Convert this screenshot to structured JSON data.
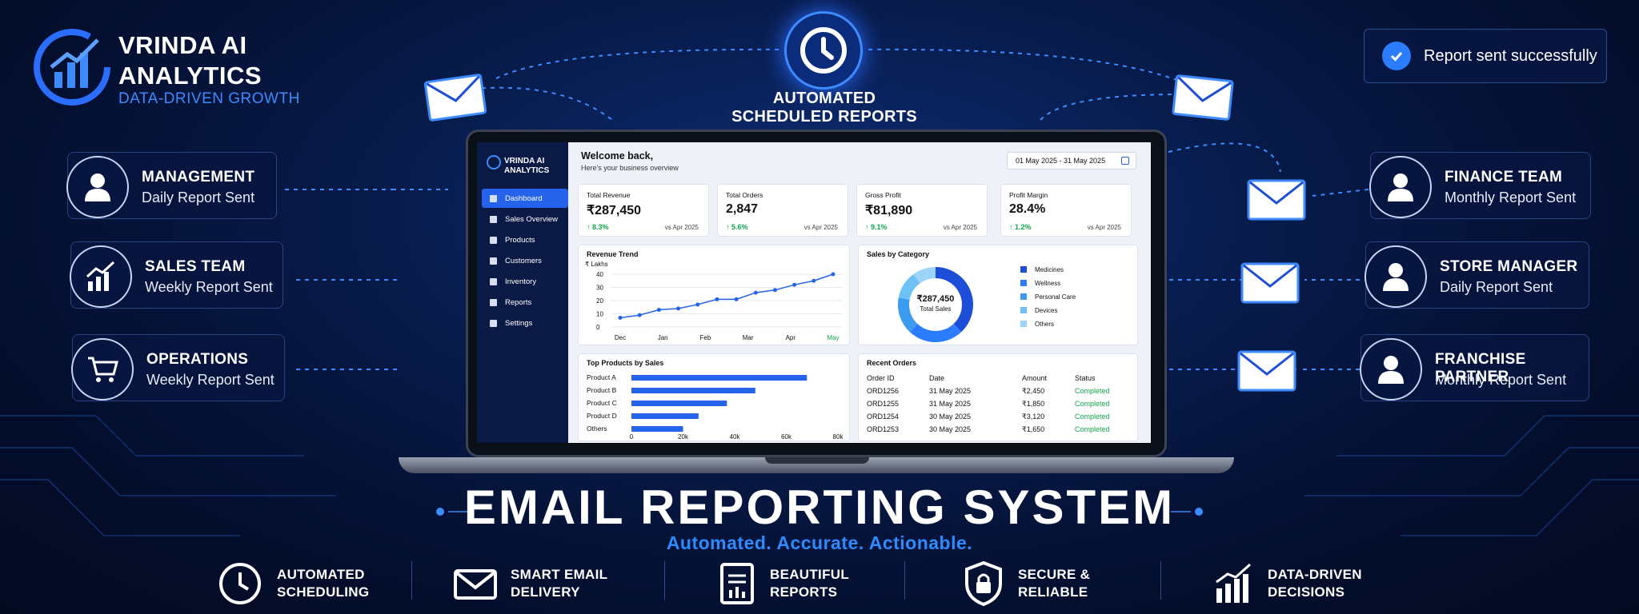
{
  "brand": {
    "line1": "VRINDA AI",
    "line2": "ANALYTICS",
    "tagline": "DATA-DRIVEN GROWTH"
  },
  "scheduler": {
    "line1": "AUTOMATED",
    "line2": "SCHEDULED REPORTS",
    "icon": "clock-icon"
  },
  "notification": {
    "text": "Report sent successfully",
    "icon": "check-circle-icon"
  },
  "recipients_left": [
    {
      "name": "MANAGEMENT",
      "status": "Daily Report Sent",
      "icon": "user-icon"
    },
    {
      "name": "SALES TEAM",
      "status": "Weekly Report Sent",
      "icon": "growth-chart-icon"
    },
    {
      "name": "OPERATIONS",
      "status": "Weekly Report Sent",
      "icon": "cart-icon"
    }
  ],
  "recipients_right": [
    {
      "name": "FINANCE TEAM",
      "status": "Monthly Report Sent",
      "icon": "user-icon"
    },
    {
      "name": "STORE MANAGER",
      "status": "Daily Report Sent",
      "icon": "user-icon"
    },
    {
      "name": "FRANCHISE PARTNER",
      "status": "Monthly Report Sent",
      "icon": "user-icon"
    }
  ],
  "dashboard": {
    "brand_line1": "VRINDA AI",
    "brand_line2": "ANALYTICS",
    "nav": [
      "Dashboard",
      "Sales Overview",
      "Products",
      "Customers",
      "Inventory",
      "Reports",
      "Settings"
    ],
    "active_nav": "Dashboard",
    "welcome": "Welcome back,",
    "welcome_sub": "Here's your business overview",
    "date_range": "01 May 2025 - 31 May 2025",
    "kpis": [
      {
        "label": "Total Revenue",
        "value": "₹287,450",
        "change": "↑ 8.3%",
        "period": "vs Apr 2025"
      },
      {
        "label": "Total Orders",
        "value": "2,847",
        "change": "↑ 5.6%",
        "period": "vs Apr 2025"
      },
      {
        "label": "Gross Profit",
        "value": "₹81,890",
        "change": "↑ 9.1%",
        "period": "vs Apr 2025"
      },
      {
        "label": "Profit Margin",
        "value": "28.4%",
        "change": "↑ 1.2%",
        "period": "vs Apr 2025"
      }
    ],
    "revenue_trend": {
      "title": "Revenue Trend",
      "unit": "₹ Lakhs",
      "yticks": [
        "40",
        "30",
        "20",
        "10",
        "0"
      ],
      "xticks": [
        "Dec",
        "Jan",
        "Feb",
        "Mar",
        "Apr",
        "May"
      ],
      "points": [
        7,
        9,
        13,
        14,
        17,
        21,
        21,
        26,
        28,
        32,
        35,
        40
      ]
    },
    "sales_by_category": {
      "title": "Sales by Category",
      "center_value": "₹287,450",
      "center_label": "Total Sales",
      "legend": [
        "Medicines",
        "Wellness",
        "Personal Care",
        "Devices",
        "Others"
      ],
      "colors": [
        "#1d4ed8",
        "#2b7cff",
        "#3b9bf0",
        "#6ec1f5",
        "#9dd5fa"
      ],
      "shares": [
        0.38,
        0.24,
        0.16,
        0.12,
        0.1
      ]
    },
    "top_products": {
      "title": "Top Products by Sales",
      "labels": [
        "Product A",
        "Product B",
        "Product C",
        "Product D",
        "Others"
      ],
      "values": [
        68000,
        48000,
        37000,
        26000,
        20000
      ],
      "xticks": [
        "0",
        "20k",
        "40k",
        "60k",
        "80k"
      ],
      "xmax": 80000
    },
    "recent_orders": {
      "title": "Recent Orders",
      "headers": [
        "Order ID",
        "Date",
        "Amount",
        "Status"
      ],
      "rows": [
        [
          "ORD1256",
          "31 May 2025",
          "₹2,450",
          "Completed"
        ],
        [
          "ORD1255",
          "31 May 2025",
          "₹1,850",
          "Completed"
        ],
        [
          "ORD1254",
          "30 May 2025",
          "₹3,120",
          "Completed"
        ],
        [
          "ORD1253",
          "30 May 2025",
          "₹1,650",
          "Completed"
        ]
      ]
    }
  },
  "headline": "EMAIL REPORTING SYSTEM",
  "subheadline": "Automated. Accurate. Actionable.",
  "features": [
    {
      "line1": "AUTOMATED",
      "line2": "SCHEDULING",
      "icon": "clock-icon"
    },
    {
      "line1": "SMART EMAIL",
      "line2": "DELIVERY",
      "icon": "envelope-icon"
    },
    {
      "line1": "BEAUTIFUL",
      "line2": "REPORTS",
      "icon": "report-icon"
    },
    {
      "line1": "SECURE &",
      "line2": "RELIABLE",
      "icon": "lock-shield-icon"
    },
    {
      "line1": "DATA-DRIVEN",
      "line2": "DECISIONS",
      "icon": "growth-chart-icon"
    }
  ]
}
